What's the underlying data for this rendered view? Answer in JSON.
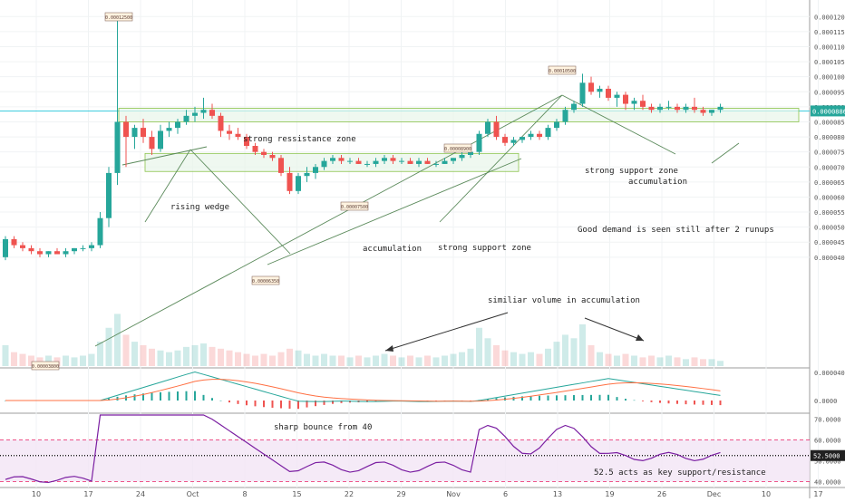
{
  "chart_data": {
    "type": "candlestick",
    "colors": {
      "up": "#26a69a",
      "down": "#ef5350",
      "zone_fill": "#e8f5e9",
      "zone_stroke": "#8bc34a",
      "trendline": "#5b8a5b",
      "current_line": "#26c6da",
      "macd_line": "#26a69a",
      "signal_line": "#ff7043",
      "rsi_line": "#7b1fa2",
      "rsi_band": "#f3e5f5",
      "price_badge": "#26a69a"
    },
    "price_axis": {
      "range": [
        3.8e-06,
        0.0001225
      ],
      "ticks": [
        "0.00012000",
        "0.00011500",
        "0.00011000",
        "0.00010500",
        "0.00010000",
        "0.00009500",
        "0.00009000",
        "0.00008500",
        "0.00008000",
        "0.00007500",
        "0.00007000",
        "0.00006500",
        "0.00006000",
        "0.00005500",
        "0.00005000",
        "0.00004500",
        "0.00004000"
      ],
      "current_price": "0.00008863"
    },
    "macd_axis": {
      "ticks": [
        "0.0000400",
        "0.0000"
      ]
    },
    "rsi_axis": {
      "ticks": [
        "70.0000",
        "60.0000",
        "50.0000",
        "40.0000"
      ],
      "level_label": "52.5000",
      "level": 52.5,
      "range": [
        38,
        72
      ]
    },
    "date_axis": {
      "labels": [
        "10",
        "17",
        "24",
        "Oct",
        "8",
        "15",
        "22",
        "29",
        "Nov",
        "6",
        "13",
        "19",
        "26",
        "Dec",
        "10",
        "17"
      ]
    },
    "candles": [
      [
        40,
        47,
        39,
        46
      ],
      [
        46,
        47,
        43,
        44
      ],
      [
        44,
        45,
        42,
        43
      ],
      [
        43,
        44,
        41,
        42
      ],
      [
        42,
        43,
        40,
        41
      ],
      [
        41,
        42,
        40,
        42
      ],
      [
        42,
        43,
        41,
        41
      ],
      [
        41,
        43,
        40,
        42
      ],
      [
        42,
        43,
        41,
        43
      ],
      [
        43,
        44,
        42,
        43
      ],
      [
        43,
        45,
        42,
        44
      ],
      [
        44,
        55,
        43,
        53
      ],
      [
        53,
        70,
        50,
        68
      ],
      [
        68,
        120,
        64,
        85
      ],
      [
        85,
        87,
        70,
        80
      ],
      [
        80,
        84,
        76,
        83
      ],
      [
        83,
        86,
        78,
        80
      ],
      [
        80,
        82,
        74,
        76
      ],
      [
        76,
        84,
        75,
        82
      ],
      [
        82,
        85,
        80,
        83
      ],
      [
        83,
        86,
        81,
        85
      ],
      [
        85,
        89,
        84,
        87
      ],
      [
        87,
        90,
        85,
        88
      ],
      [
        88,
        93,
        86,
        89
      ],
      [
        89,
        91,
        86,
        87
      ],
      [
        87,
        88,
        80,
        82
      ],
      [
        82,
        84,
        79,
        81
      ],
      [
        81,
        83,
        79,
        80
      ],
      [
        80,
        81,
        76,
        77
      ],
      [
        77,
        78,
        74,
        75
      ],
      [
        75,
        76,
        73,
        74
      ],
      [
        74,
        75,
        72,
        73
      ],
      [
        73,
        74,
        67,
        68
      ],
      [
        68,
        70,
        61,
        62
      ],
      [
        62,
        68,
        61,
        67
      ],
      [
        67,
        70,
        65,
        68
      ],
      [
        68,
        71,
        66,
        70
      ],
      [
        70,
        73,
        69,
        72
      ],
      [
        72,
        74,
        71,
        73
      ],
      [
        73,
        74,
        71,
        72
      ],
      [
        72,
        73,
        71,
        72
      ],
      [
        72,
        73,
        71,
        71
      ],
      [
        71,
        72,
        70,
        71
      ],
      [
        71,
        73,
        70,
        72
      ],
      [
        72,
        74,
        71,
        73
      ],
      [
        73,
        74,
        71,
        72
      ],
      [
        72,
        73,
        71,
        72
      ],
      [
        72,
        73,
        71,
        71
      ],
      [
        71,
        73,
        70,
        72
      ],
      [
        72,
        73,
        71,
        71
      ],
      [
        71,
        72,
        70,
        71
      ],
      [
        71,
        73,
        71,
        72
      ],
      [
        72,
        73,
        71,
        73
      ],
      [
        73,
        75,
        72,
        74
      ],
      [
        74,
        76,
        73,
        75
      ],
      [
        75,
        82,
        74,
        81
      ],
      [
        81,
        86,
        80,
        85
      ],
      [
        85,
        87,
        79,
        80
      ],
      [
        80,
        81,
        77,
        78
      ],
      [
        78,
        80,
        77,
        79
      ],
      [
        79,
        80,
        78,
        80
      ],
      [
        80,
        82,
        79,
        81
      ],
      [
        81,
        82,
        79,
        80
      ],
      [
        80,
        84,
        79,
        83
      ],
      [
        83,
        86,
        82,
        85
      ],
      [
        85,
        90,
        84,
        89
      ],
      [
        89,
        92,
        88,
        91
      ],
      [
        91,
        101,
        90,
        98
      ],
      [
        98,
        100,
        94,
        95
      ],
      [
        95,
        97,
        93,
        96
      ],
      [
        96,
        97,
        92,
        93
      ],
      [
        93,
        95,
        90,
        94
      ],
      [
        94,
        95,
        89,
        91
      ],
      [
        91,
        93,
        89,
        92
      ],
      [
        92,
        94,
        89,
        90
      ],
      [
        90,
        91,
        88,
        89
      ],
      [
        89,
        91,
        88,
        90
      ],
      [
        90,
        92,
        89,
        90
      ],
      [
        90,
        91,
        88,
        89
      ],
      [
        89,
        91,
        88,
        90
      ],
      [
        90,
        93,
        88,
        89
      ],
      [
        89,
        90,
        87,
        88
      ],
      [
        88,
        89,
        87,
        89
      ],
      [
        89,
        91,
        88,
        90
      ]
    ],
    "volume": [
      12,
      8,
      7,
      6,
      5,
      6,
      5,
      6,
      5,
      6,
      7,
      14,
      22,
      30,
      18,
      14,
      12,
      10,
      9,
      8,
      9,
      11,
      12,
      13,
      11,
      10,
      9,
      8,
      7,
      6,
      7,
      6,
      8,
      10,
      9,
      7,
      6,
      7,
      6,
      6,
      5,
      6,
      5,
      6,
      7,
      6,
      5,
      6,
      5,
      6,
      5,
      6,
      7,
      8,
      10,
      22,
      16,
      12,
      9,
      8,
      7,
      8,
      7,
      10,
      14,
      18,
      16,
      24,
      12,
      8,
      7,
      6,
      7,
      6,
      5,
      6,
      5,
      6,
      5,
      4,
      5,
      4,
      4,
      3
    ],
    "annotations": {
      "resistance": "strong ressistance zone",
      "wedge": "rising wedge",
      "accum1": "accumulation",
      "support1": "strong support zone",
      "support2": "strong support zone",
      "accum2": "accumulation",
      "demand": "Good demand is seen still after 2 runups",
      "volume_note": "similiar volume in accumulation",
      "bounce": "sharp bounce from 40",
      "key_level": "52.5 acts as key support/resistance"
    },
    "price_tags": [
      "0.00012500",
      "0.00003800",
      "0.00007500",
      "0.00006350",
      "0.00008900",
      "0.00010500"
    ]
  }
}
